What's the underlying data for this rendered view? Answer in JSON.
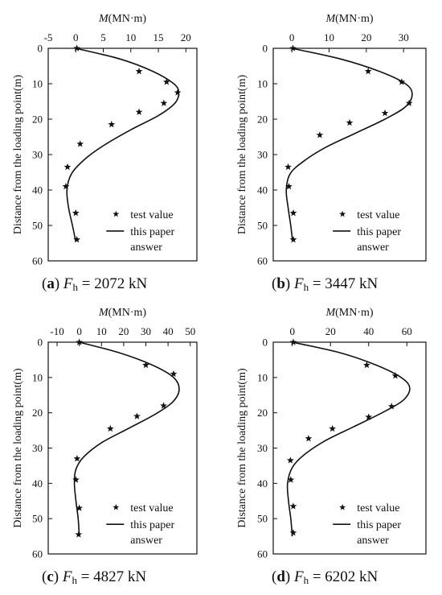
{
  "chart_data": [
    {
      "type": "line",
      "caption": {
        "letter": "a",
        "var": "F",
        "sub": "h",
        "value": "= 2072 kN"
      },
      "xlabel_italic": "M",
      "xlabel_unit": "(MN·m)",
      "ylabel": "Distance from the loading point(m)",
      "xlim": [
        -5,
        22
      ],
      "ylim": [
        0,
        60
      ],
      "xticks": [
        "-5",
        "0",
        "5",
        "10",
        "15",
        "20"
      ],
      "yticks": [
        "0",
        "10",
        "20",
        "30",
        "40",
        "50",
        "60"
      ],
      "legend": {
        "marker_label": "test value",
        "line_label_1": "this paper",
        "line_label_2": "answer",
        "position": "bottom-right"
      },
      "series": [
        {
          "kind": "scatter",
          "points": [
            [
              0.2,
              0
            ],
            [
              11.5,
              6.5
            ],
            [
              16.5,
              9.5
            ],
            [
              18.5,
              12.5
            ],
            [
              16,
              15.5
            ],
            [
              11.5,
              18
            ],
            [
              6.5,
              21.5
            ],
            [
              0.8,
              27
            ],
            [
              -1.5,
              33.5
            ],
            [
              -1.8,
              39
            ],
            [
              0,
              46.5
            ],
            [
              0.2,
              54
            ]
          ]
        },
        {
          "kind": "line",
          "points": [
            [
              0,
              0
            ],
            [
              8,
              3
            ],
            [
              14,
              6.5
            ],
            [
              17.8,
              10
            ],
            [
              18.7,
              12.5
            ],
            [
              18,
              15.5
            ],
            [
              15,
              19
            ],
            [
              10,
              23
            ],
            [
              5,
              27.5
            ],
            [
              1.5,
              31.5
            ],
            [
              -0.8,
              35.5
            ],
            [
              -1.6,
              40
            ],
            [
              -1.3,
              45
            ],
            [
              -0.6,
              50
            ],
            [
              0,
              54.5
            ]
          ]
        }
      ]
    },
    {
      "type": "line",
      "caption": {
        "letter": "b",
        "var": "F",
        "sub": "h",
        "value": "= 3447 kN"
      },
      "xlabel_italic": "M",
      "xlabel_unit": "(MN·m)",
      "ylabel": "Distance from the loading point(m)",
      "xlim": [
        -5,
        36
      ],
      "ylim": [
        0,
        60
      ],
      "xticks": [
        "0",
        "10",
        "20",
        "30"
      ],
      "yticks": [
        "0",
        "10",
        "20",
        "30",
        "40",
        "50",
        "60"
      ],
      "legend": {
        "marker_label": "test value",
        "line_label_1": "this paper",
        "line_label_2": "answer",
        "position": "bottom-right"
      },
      "series": [
        {
          "kind": "scatter",
          "points": [
            [
              0.3,
              0
            ],
            [
              20.5,
              6.5
            ],
            [
              29.5,
              9.5
            ],
            [
              31.5,
              15.5
            ],
            [
              25,
              18.3
            ],
            [
              15.5,
              21
            ],
            [
              7.5,
              24.5
            ],
            [
              -1,
              33.5
            ],
            [
              -0.8,
              39
            ],
            [
              0.4,
              46.5
            ],
            [
              0.4,
              54
            ]
          ]
        },
        {
          "kind": "line",
          "points": [
            [
              0,
              0
            ],
            [
              13,
              3
            ],
            [
              23.5,
              6.5
            ],
            [
              30.5,
              10
            ],
            [
              32.3,
              13
            ],
            [
              30.5,
              16.5
            ],
            [
              25,
              20
            ],
            [
              17,
              24
            ],
            [
              9,
              28
            ],
            [
              3,
              32
            ],
            [
              -0.5,
              35.5
            ],
            [
              -1.5,
              40
            ],
            [
              -1,
              45
            ],
            [
              -0.3,
              50
            ],
            [
              0.2,
              54.5
            ]
          ]
        }
      ]
    },
    {
      "type": "line",
      "caption": {
        "letter": "c",
        "var": "F",
        "sub": "h",
        "value": "= 4827 kN"
      },
      "xlabel_italic": "M",
      "xlabel_unit": "(MN·m)",
      "ylabel": "Distance from the loading point(m)",
      "xlim": [
        -14,
        53
      ],
      "ylim": [
        0,
        60
      ],
      "xticks": [
        "-10",
        "0",
        "10",
        "20",
        "30",
        "40",
        "50"
      ],
      "yticks": [
        "0",
        "10",
        "20",
        "30",
        "40",
        "50",
        "60"
      ],
      "legend": {
        "marker_label": "test value",
        "line_label_1": "this paper",
        "line_label_2": "answer",
        "position": "bottom-right"
      },
      "series": [
        {
          "kind": "scatter",
          "points": [
            [
              0,
              0
            ],
            [
              30,
              6.5
            ],
            [
              42.5,
              9
            ],
            [
              38,
              18
            ],
            [
              26,
              21
            ],
            [
              14,
              24.5
            ],
            [
              -1,
              33
            ],
            [
              -1.5,
              39
            ],
            [
              0,
              47
            ],
            [
              -0.3,
              54.5
            ]
          ]
        },
        {
          "kind": "line",
          "points": [
            [
              0,
              0
            ],
            [
              18,
              3
            ],
            [
              33,
              6.5
            ],
            [
              42.5,
              10
            ],
            [
              45,
              13.5
            ],
            [
              42,
              17
            ],
            [
              34,
              20.5
            ],
            [
              22,
              24.5
            ],
            [
              10,
              28.5
            ],
            [
              2,
              32.5
            ],
            [
              -1.5,
              36
            ],
            [
              -2.2,
              40
            ],
            [
              -1.5,
              45
            ],
            [
              -0.5,
              50
            ],
            [
              0,
              55
            ]
          ]
        }
      ]
    },
    {
      "type": "line",
      "caption": {
        "letter": "d",
        "var": "F",
        "sub": "h",
        "value": "= 6202 kN"
      },
      "xlabel_italic": "M",
      "xlabel_unit": "(MN·m)",
      "ylabel": "Distance from the loading point(m)",
      "xlim": [
        -10,
        70
      ],
      "ylim": [
        0,
        60
      ],
      "xticks": [
        "0",
        "20",
        "40",
        "60"
      ],
      "yticks": [
        "0",
        "10",
        "20",
        "30",
        "40",
        "50",
        "60"
      ],
      "legend": {
        "marker_label": "test value",
        "line_label_1": "this paper",
        "line_label_2": "answer",
        "position": "bottom-right"
      },
      "series": [
        {
          "kind": "scatter",
          "points": [
            [
              0.5,
              0
            ],
            [
              39,
              6.5
            ],
            [
              54,
              9.5
            ],
            [
              52,
              18.2
            ],
            [
              40,
              21.2
            ],
            [
              21,
              24.5
            ],
            [
              8.5,
              27.3
            ],
            [
              -1,
              33.5
            ],
            [
              -0.8,
              39
            ],
            [
              0.5,
              46.5
            ],
            [
              0.5,
              54
            ]
          ]
        },
        {
          "kind": "line",
          "points": [
            [
              0,
              0
            ],
            [
              25,
              3
            ],
            [
              44,
              6.5
            ],
            [
              57,
              10
            ],
            [
              61.5,
              13
            ],
            [
              58,
              16.5
            ],
            [
              47,
              20
            ],
            [
              32,
              24
            ],
            [
              17,
              28
            ],
            [
              6,
              32
            ],
            [
              0,
              35.5
            ],
            [
              -2.5,
              40
            ],
            [
              -2,
              45
            ],
            [
              -0.8,
              50
            ],
            [
              0,
              55
            ]
          ]
        }
      ]
    }
  ]
}
